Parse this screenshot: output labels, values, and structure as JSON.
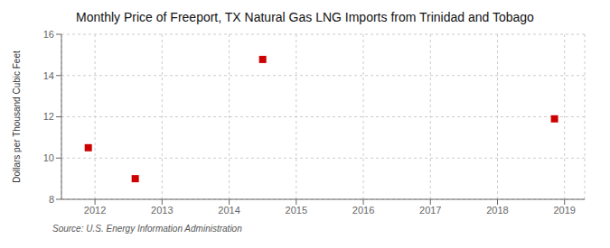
{
  "chart_data": {
    "type": "scatter",
    "title": "Monthly Price of Freeport, TX Natural Gas LNG Imports from Trinidad and Tobago",
    "ylabel": "Dollars per Thousand Cubic Feet",
    "annotation": "Source: U.S. Energy Information Administration",
    "x": [
      2011.9,
      2012.6,
      2014.5,
      2018.85
    ],
    "values": [
      10.5,
      9.0,
      14.78,
      11.9
    ],
    "color": "#cc0000",
    "marker": "square",
    "xlim": [
      2011.5,
      2019.3
    ],
    "xticks": [
      2012,
      2013,
      2014,
      2015,
      2016,
      2017,
      2018,
      2019
    ],
    "ylim": [
      8,
      16
    ],
    "yticks": [
      8,
      10,
      12,
      14,
      16
    ],
    "grid": true
  }
}
